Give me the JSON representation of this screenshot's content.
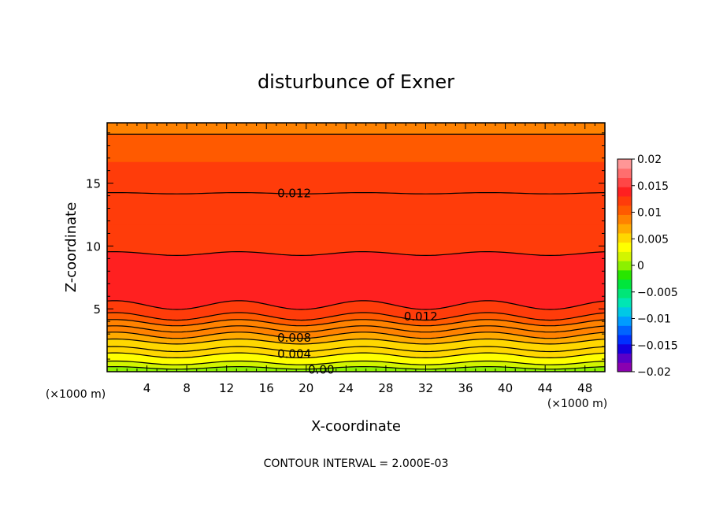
{
  "chart_data": {
    "type": "contour",
    "title": "disturbunce of Exner",
    "xlabel": "X-coordinate",
    "ylabel": "Z-coordinate",
    "x_unit": "(×1000 m)",
    "y_unit": "(×1000 m)",
    "xlim": [
      0,
      50
    ],
    "ylim": [
      0,
      19.8
    ],
    "x_ticks": [
      4,
      8,
      12,
      16,
      20,
      24,
      28,
      32,
      36,
      40,
      44,
      48
    ],
    "y_ticks": [
      5,
      10,
      15
    ],
    "footer": "CONTOUR INTERVAL = 2.000E-03",
    "colorbar": {
      "range": [
        -0.02,
        0.02
      ],
      "tick_values": [
        0.02,
        0.015,
        0.01,
        0.005,
        0,
        -0.005,
        -0.01,
        -0.015,
        -0.02
      ],
      "tick_labels": [
        "0.02",
        "0.015",
        "0.01",
        "0.005",
        "0",
        "−0.005",
        "−0.01",
        "−0.015",
        "−0.02"
      ],
      "colors": [
        "#8a00b0",
        "#5a00c8",
        "#1400e0",
        "#0030ff",
        "#0064ff",
        "#009cff",
        "#00c8e6",
        "#00e6b4",
        "#00e678",
        "#00e63c",
        "#28e600",
        "#8cf000",
        "#d2f500",
        "#ffff00",
        "#ffd700",
        "#ffaa00",
        "#ff8200",
        "#ff5a00",
        "#ff3c0a",
        "#ff2020",
        "#ff4646",
        "#ff6e6e",
        "#ff9696"
      ]
    },
    "bands": [
      {
        "z": [
          0,
          0.3
        ],
        "value": 0.0
      },
      {
        "z": [
          0.3,
          0.7
        ],
        "value": 0.002
      },
      {
        "z": [
          0.7,
          1.3
        ],
        "value": 0.003
      },
      {
        "z": [
          1.3,
          1.8
        ],
        "value": 0.005
      },
      {
        "z": [
          1.8,
          2.4
        ],
        "value": 0.006
      },
      {
        "z": [
          2.4,
          2.9
        ],
        "value": 0.007
      },
      {
        "z": [
          2.9,
          3.4
        ],
        "value": 0.008
      },
      {
        "z": [
          3.4,
          3.9
        ],
        "value": 0.009
      },
      {
        "z": [
          3.9,
          4.4
        ],
        "value": 0.0105
      },
      {
        "z": [
          4.4,
          5.3
        ],
        "value": 0.0115
      },
      {
        "z": [
          5.3,
          9.4
        ],
        "value": 0.0145
      },
      {
        "z": [
          9.4,
          11.7
        ],
        "value": 0.013
      },
      {
        "z": [
          11.7,
          14.2
        ],
        "value": 0.012
      },
      {
        "z": [
          14.2,
          16.7
        ],
        "value": 0.0115
      },
      {
        "z": [
          16.7,
          18.9
        ],
        "value": 0.0105
      },
      {
        "z": [
          18.9,
          19.8
        ],
        "value": 0.0095
      }
    ],
    "contours": [
      {
        "z": 0.3,
        "amp": 0.1
      },
      {
        "z": 0.7,
        "amp": 0.15
      },
      {
        "z": 1.3,
        "amp": 0.2
      },
      {
        "z": 1.8,
        "amp": 0.2
      },
      {
        "z": 2.4,
        "amp": 0.2
      },
      {
        "z": 2.9,
        "amp": 0.25
      },
      {
        "z": 3.4,
        "amp": 0.25
      },
      {
        "z": 3.9,
        "amp": 0.25
      },
      {
        "z": 4.4,
        "amp": 0.3
      },
      {
        "z": 5.3,
        "amp": 0.35
      },
      {
        "z": 9.4,
        "amp": 0.15
      },
      {
        "z": 14.2,
        "amp": 0.05
      },
      {
        "z": 18.9,
        "amp": 0.0
      }
    ],
    "contour_labels": [
      {
        "text": "0.012",
        "x": 18.8,
        "z": 14.2
      },
      {
        "text": "0.012",
        "x": 31.5,
        "z": 4.4
      },
      {
        "text": "0.008",
        "x": 18.8,
        "z": 2.7
      },
      {
        "text": "0.004",
        "x": 18.8,
        "z": 1.4
      },
      {
        "text": "0.00",
        "x": 21.5,
        "z": 0.15
      }
    ]
  }
}
